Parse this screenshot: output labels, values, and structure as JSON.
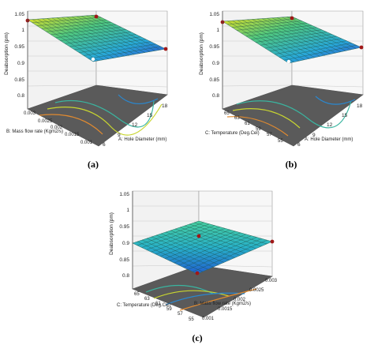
{
  "chart_data": [
    {
      "type": "surface3d",
      "panel_label": "(a)",
      "zlabel": "Deabsorption (pm)",
      "xlabel": "A: Hole Diameter (mm)",
      "ylabel": "B: Mass flow rate (Kgm2/s)",
      "zticks": [
        "0.8",
        "0.85",
        "0.9",
        "0.95",
        "1",
        "1.05"
      ],
      "xticks": [
        "6",
        "9",
        "12",
        "15",
        "18"
      ],
      "yticks": [
        "0.001",
        "0.0015",
        "0.002",
        "0.0025",
        "0.003"
      ],
      "zlim": [
        0.8,
        1.05
      ],
      "surface": {
        "note": "value at grid corners (x = hole diameter 6→18, y = mass flow rate 0.001→0.003)",
        "z_x6_ylow": 0.9,
        "z_x18_ylow": 0.93,
        "z_x6_yhigh": 1.02,
        "z_x18_yhigh": 0.98,
        "min_value": 0.84
      }
    },
    {
      "type": "surface3d",
      "panel_label": "(b)",
      "zlabel": "Deabsorption (pm)",
      "xlabel": "A: Hole Diameter (mm)",
      "ylabel": "C: Temperature (Deg.Cel)",
      "zticks": [
        "0.8",
        "0.85",
        "0.9",
        "0.95",
        "1",
        "1.05"
      ],
      "xticks": [
        "6",
        "9",
        "12",
        "15",
        "18"
      ],
      "yticks": [
        "55",
        "57",
        "59",
        "61",
        "63",
        "65"
      ],
      "zlim": [
        0.8,
        1.05
      ],
      "surface": {
        "z_x6_ylow": 0.91,
        "z_x18_ylow": 0.94,
        "z_x6_yhigh": 1.01,
        "z_x18_yhigh": 0.97,
        "min_value": 0.84
      }
    },
    {
      "type": "surface3d",
      "panel_label": "(c)",
      "zlabel": "Deabsorption (pm)",
      "xlabel": "B: Mass flow rate (Kgm2/s)",
      "ylabel": "C: Temperature (Deg.Cel)",
      "zticks": [
        "0.8",
        "0.85",
        "0.9",
        "0.95",
        "1",
        "1.05"
      ],
      "xticks": [
        "0.001",
        "0.0015",
        "0.002",
        "0.0025",
        "0.003"
      ],
      "yticks": [
        "55",
        "57",
        "59",
        "61",
        "63",
        "65"
      ],
      "zlim": [
        0.8,
        1.05
      ],
      "surface": {
        "z_x0_y0": 0.84,
        "z_x1_y0": 0.87,
        "z_x0_y1": 0.86,
        "z_x1_y1": 0.89,
        "min_value": 0.84
      }
    }
  ]
}
